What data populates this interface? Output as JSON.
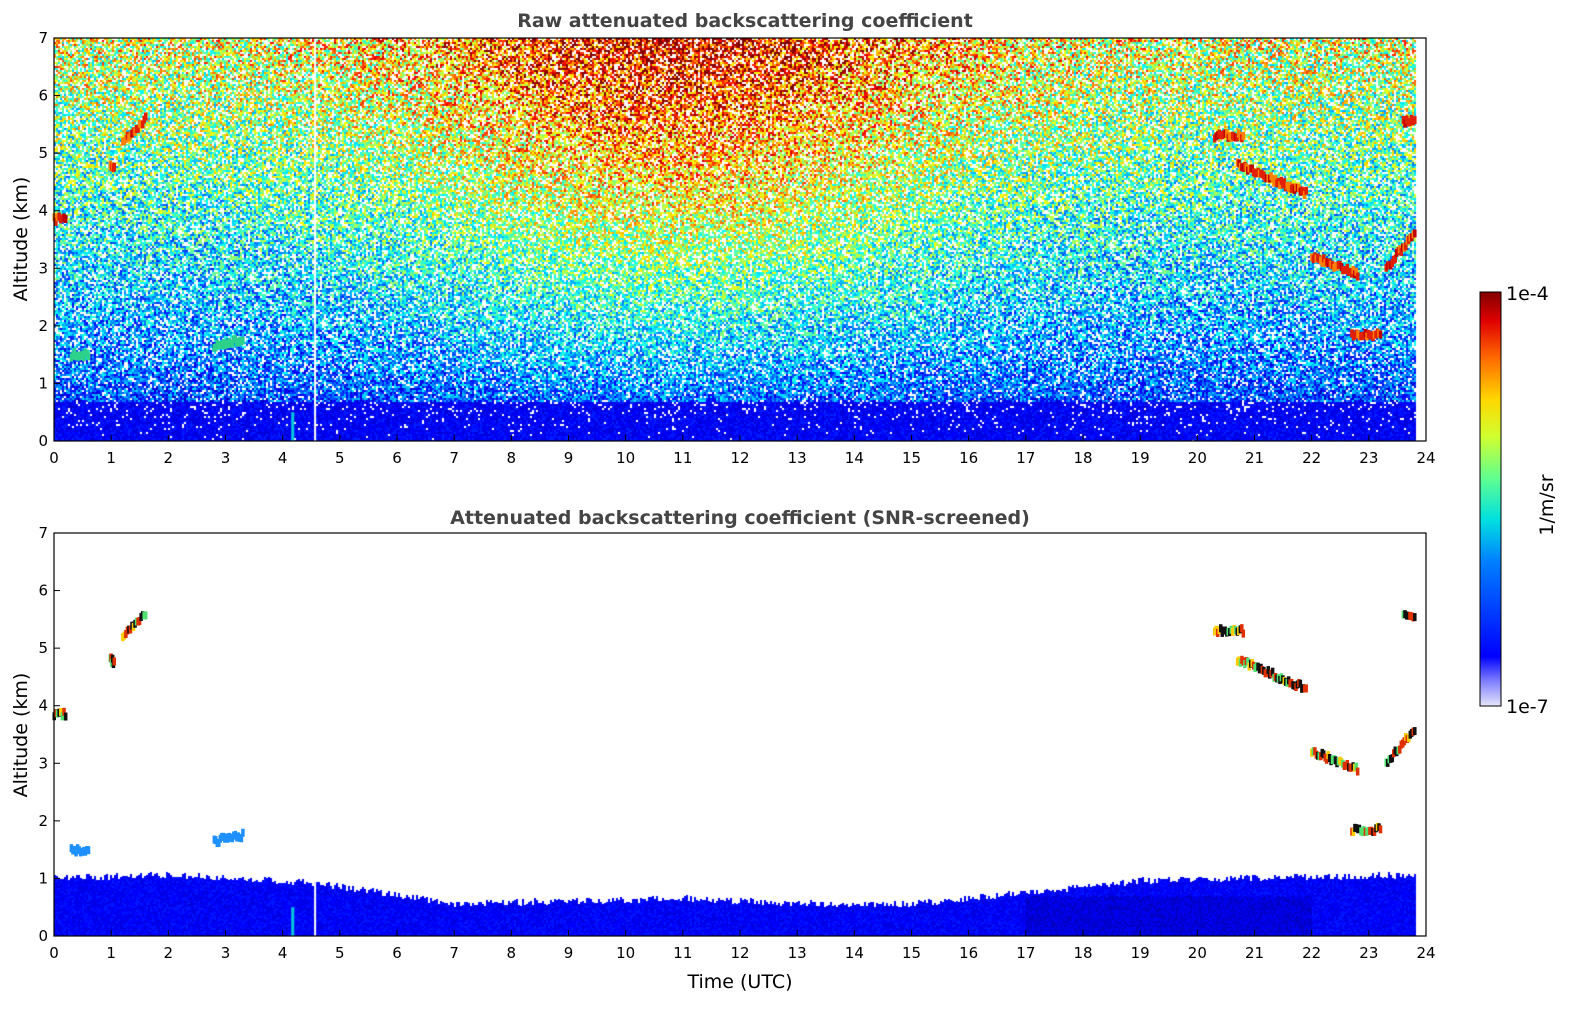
{
  "chart_data": [
    {
      "type": "heatmap",
      "title": "Raw attenuated backscattering coefficient",
      "xlabel": "",
      "ylabel": "Altitude (km)",
      "xlim": [
        0,
        24
      ],
      "ylim": [
        0,
        7
      ],
      "xticks": [
        "0",
        "1",
        "2",
        "3",
        "4",
        "5",
        "6",
        "7",
        "8",
        "9",
        "10",
        "11",
        "12",
        "13",
        "14",
        "15",
        "16",
        "17",
        "18",
        "19",
        "20",
        "21",
        "22",
        "23",
        "24"
      ],
      "yticks": [
        "0",
        "1",
        "2",
        "3",
        "4",
        "5",
        "6",
        "7"
      ],
      "grid": false,
      "data_end_time": 23.8,
      "clouds": [
        {
          "t_start": 0.0,
          "t_end": 0.2,
          "alt_start": 3.85,
          "alt_end": 3.85
        },
        {
          "t_start": 0.98,
          "t_end": 1.05,
          "alt_start": 4.8,
          "alt_end": 4.75
        },
        {
          "t_start": 1.2,
          "t_end": 1.6,
          "alt_start": 5.2,
          "alt_end": 5.6
        },
        {
          "t_start": 0.3,
          "t_end": 0.6,
          "alt_start": 1.5,
          "alt_end": 1.5
        },
        {
          "t_start": 2.8,
          "t_end": 3.3,
          "alt_start": 1.65,
          "alt_end": 1.75
        },
        {
          "t_start": 20.3,
          "t_end": 20.8,
          "alt_start": 5.3,
          "alt_end": 5.3
        },
        {
          "t_start": 20.7,
          "t_end": 21.9,
          "alt_start": 4.8,
          "alt_end": 4.3
        },
        {
          "t_start": 22.0,
          "t_end": 22.8,
          "alt_start": 3.2,
          "alt_end": 2.9
        },
        {
          "t_start": 22.7,
          "t_end": 23.2,
          "alt_start": 1.85,
          "alt_end": 1.85
        },
        {
          "t_start": 23.3,
          "t_end": 23.8,
          "alt_start": 3.0,
          "alt_end": 3.6
        },
        {
          "t_start": 23.6,
          "t_end": 23.8,
          "alt_start": 5.55,
          "alt_end": 5.55
        }
      ],
      "data_gaps": [
        4.55
      ]
    },
    {
      "type": "heatmap",
      "title": "Attenuated backscattering coefficient (SNR-screened)",
      "xlabel": "Time (UTC)",
      "ylabel": "Altitude (km)",
      "xlim": [
        0,
        24
      ],
      "ylim": [
        0,
        7
      ],
      "xticks": [
        "0",
        "1",
        "2",
        "3",
        "4",
        "5",
        "6",
        "7",
        "8",
        "9",
        "10",
        "11",
        "12",
        "13",
        "14",
        "15",
        "16",
        "17",
        "18",
        "19",
        "20",
        "21",
        "22",
        "23",
        "24"
      ],
      "yticks": [
        "0",
        "1",
        "2",
        "3",
        "4",
        "5",
        "6",
        "7"
      ],
      "grid": false,
      "data_end_time": 23.8,
      "boundary_layer_top_km": [
        {
          "t": 0,
          "alt": 1.0
        },
        {
          "t": 2,
          "alt": 1.05
        },
        {
          "t": 4,
          "alt": 0.95
        },
        {
          "t": 5,
          "alt": 0.85
        },
        {
          "t": 6,
          "alt": 0.7
        },
        {
          "t": 7,
          "alt": 0.55
        },
        {
          "t": 9,
          "alt": 0.6
        },
        {
          "t": 11,
          "alt": 0.65
        },
        {
          "t": 13,
          "alt": 0.55
        },
        {
          "t": 15,
          "alt": 0.55
        },
        {
          "t": 17,
          "alt": 0.75
        },
        {
          "t": 19,
          "alt": 0.95
        },
        {
          "t": 21,
          "alt": 1.0
        },
        {
          "t": 23.8,
          "alt": 1.05
        }
      ]
    }
  ],
  "colorbar": {
    "max_label": "1e-4",
    "min_label": "1e-7",
    "unit_label": "1/m/sr",
    "scale": "log",
    "colormap": "jet"
  }
}
